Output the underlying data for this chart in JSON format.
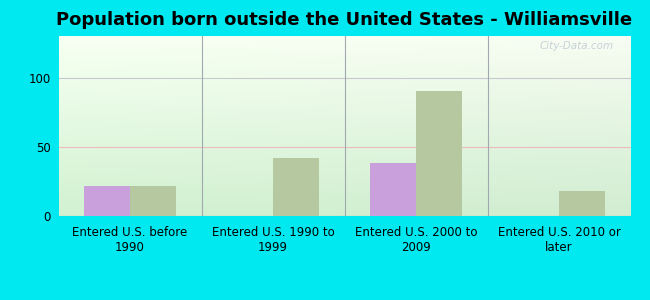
{
  "title": "Population born outside the United States - Williamsville",
  "categories": [
    "Entered U.S. before\n1990",
    "Entered U.S. 1990 to\n1999",
    "Entered U.S. 2000 to\n2009",
    "Entered U.S. 2010 or\nlater"
  ],
  "native_values": [
    22,
    0,
    38,
    0
  ],
  "foreign_values": [
    22,
    42,
    90,
    18
  ],
  "native_color": "#c9a0dc",
  "foreign_color": "#b5c8a0",
  "bg_outer": "#00e8f0",
  "ylim": [
    0,
    130
  ],
  "yticks": [
    0,
    50,
    100
  ],
  "title_fontsize": 13,
  "tick_fontsize": 8.5,
  "legend_fontsize": 9.5,
  "bar_width": 0.32,
  "watermark": "City-Data.com",
  "grid_color_100": "#c8c8d0",
  "grid_color_50": "#f0b8c0",
  "separator_color": "#a0a8b0"
}
